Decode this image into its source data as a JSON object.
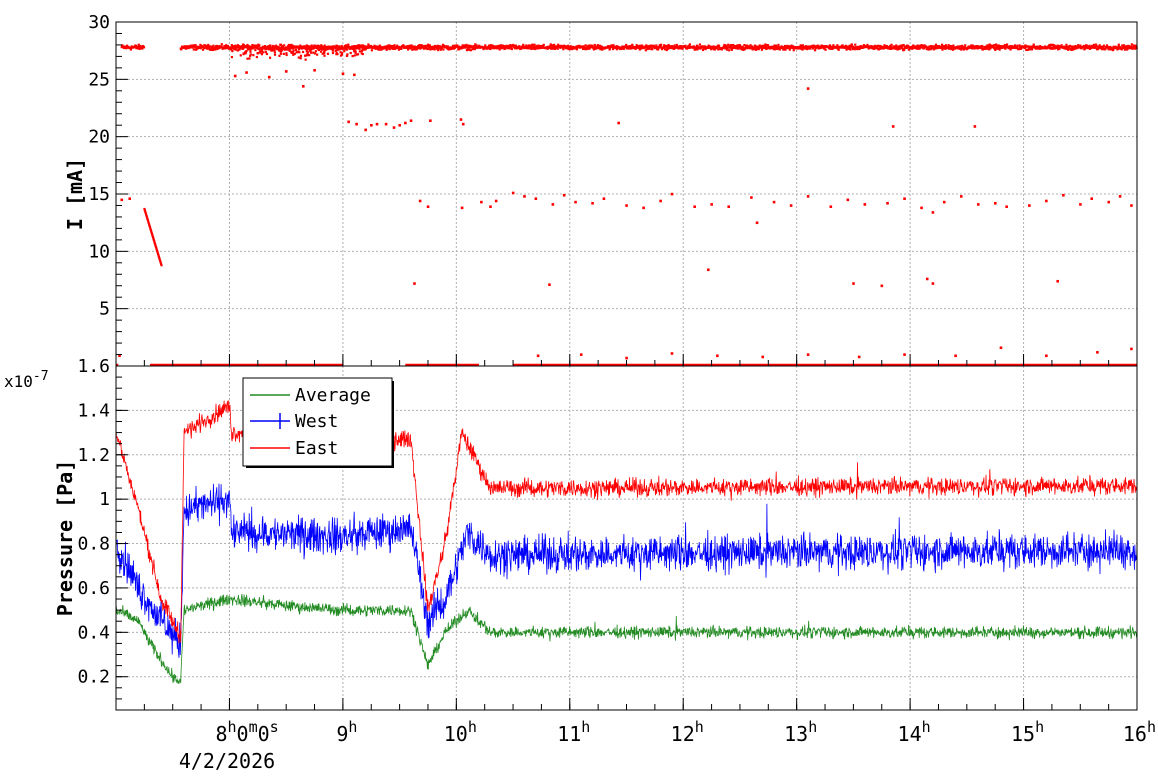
{
  "chart_data": [
    {
      "type": "scatter",
      "title": "",
      "xlabel": "",
      "ylabel": "I [mA]",
      "xlim": [
        7.0,
        16.0
      ],
      "ylim": [
        0,
        30
      ],
      "yticks": [
        "5",
        "10",
        "15",
        "20",
        "25",
        "30"
      ],
      "grid": true,
      "series": [
        {
          "color": "#ff0000",
          "bands": [
            {
              "x0": 7.05,
              "x1": 7.25,
              "y": 27.8,
              "noise": 0.3
            },
            {
              "x0": 7.57,
              "x1": 16.0,
              "y": 27.8,
              "noise": 0.3
            }
          ],
          "decay": {
            "x0": 7.25,
            "x1": 7.4,
            "y0": 13.7,
            "y1": 8.8
          },
          "outliers": [
            {
              "x": 7.05,
              "y": 14.5
            },
            {
              "x": 7.12,
              "y": 14.6
            },
            {
              "x": 8.05,
              "y": 25.3
            },
            {
              "x": 8.15,
              "y": 25.6
            },
            {
              "x": 8.35,
              "y": 25.2
            },
            {
              "x": 8.5,
              "y": 25.7
            },
            {
              "x": 8.65,
              "y": 24.4
            },
            {
              "x": 8.75,
              "y": 25.8
            },
            {
              "x": 9.0,
              "y": 25.5
            },
            {
              "x": 9.1,
              "y": 25.4
            },
            {
              "x": 9.05,
              "y": 21.3
            },
            {
              "x": 9.12,
              "y": 21.1
            },
            {
              "x": 9.2,
              "y": 20.6
            },
            {
              "x": 9.25,
              "y": 21.0
            },
            {
              "x": 9.3,
              "y": 21.1
            },
            {
              "x": 9.38,
              "y": 21.1
            },
            {
              "x": 9.45,
              "y": 20.8
            },
            {
              "x": 9.5,
              "y": 21.0
            },
            {
              "x": 9.55,
              "y": 21.2
            },
            {
              "x": 9.6,
              "y": 21.4
            },
            {
              "x": 9.77,
              "y": 21.4
            },
            {
              "x": 10.04,
              "y": 21.5
            },
            {
              "x": 10.06,
              "y": 21.1
            },
            {
              "x": 11.43,
              "y": 21.2
            },
            {
              "x": 13.85,
              "y": 20.9
            },
            {
              "x": 14.57,
              "y": 20.9
            },
            {
              "x": 13.1,
              "y": 24.2
            },
            {
              "x": 9.68,
              "y": 14.4
            },
            {
              "x": 9.75,
              "y": 13.9
            },
            {
              "x": 10.05,
              "y": 13.8
            },
            {
              "x": 10.22,
              "y": 14.3
            },
            {
              "x": 10.3,
              "y": 13.9
            },
            {
              "x": 10.35,
              "y": 14.4
            },
            {
              "x": 10.5,
              "y": 15.1
            },
            {
              "x": 10.6,
              "y": 14.8
            },
            {
              "x": 10.7,
              "y": 14.6
            },
            {
              "x": 10.85,
              "y": 14.1
            },
            {
              "x": 10.95,
              "y": 14.9
            },
            {
              "x": 11.05,
              "y": 14.3
            },
            {
              "x": 11.2,
              "y": 14.2
            },
            {
              "x": 11.3,
              "y": 14.6
            },
            {
              "x": 11.5,
              "y": 14.0
            },
            {
              "x": 11.65,
              "y": 13.8
            },
            {
              "x": 11.8,
              "y": 14.4
            },
            {
              "x": 11.9,
              "y": 15.0
            },
            {
              "x": 12.1,
              "y": 13.9
            },
            {
              "x": 12.25,
              "y": 14.1
            },
            {
              "x": 12.4,
              "y": 13.9
            },
            {
              "x": 12.6,
              "y": 14.7
            },
            {
              "x": 12.65,
              "y": 12.5
            },
            {
              "x": 12.8,
              "y": 14.3
            },
            {
              "x": 12.95,
              "y": 14.0
            },
            {
              "x": 13.1,
              "y": 14.8
            },
            {
              "x": 13.3,
              "y": 13.9
            },
            {
              "x": 13.45,
              "y": 14.5
            },
            {
              "x": 13.6,
              "y": 14.1
            },
            {
              "x": 13.8,
              "y": 14.2
            },
            {
              "x": 13.95,
              "y": 14.6
            },
            {
              "x": 14.1,
              "y": 13.8
            },
            {
              "x": 14.2,
              "y": 13.4
            },
            {
              "x": 14.3,
              "y": 14.3
            },
            {
              "x": 14.45,
              "y": 14.8
            },
            {
              "x": 14.6,
              "y": 14.1
            },
            {
              "x": 14.75,
              "y": 14.2
            },
            {
              "x": 14.85,
              "y": 13.9
            },
            {
              "x": 15.05,
              "y": 14.0
            },
            {
              "x": 15.2,
              "y": 14.4
            },
            {
              "x": 15.35,
              "y": 14.9
            },
            {
              "x": 15.5,
              "y": 14.1
            },
            {
              "x": 15.6,
              "y": 14.6
            },
            {
              "x": 15.75,
              "y": 14.3
            },
            {
              "x": 15.85,
              "y": 14.8
            },
            {
              "x": 15.95,
              "y": 14.0
            },
            {
              "x": 9.63,
              "y": 7.2
            },
            {
              "x": 10.82,
              "y": 7.1
            },
            {
              "x": 12.22,
              "y": 8.4
            },
            {
              "x": 13.5,
              "y": 7.2
            },
            {
              "x": 13.75,
              "y": 7.0
            },
            {
              "x": 14.15,
              "y": 7.6
            },
            {
              "x": 14.2,
              "y": 7.2
            },
            {
              "x": 15.3,
              "y": 7.4
            },
            {
              "x": 7.03,
              "y": 0.9
            },
            {
              "x": 10.72,
              "y": 0.9
            },
            {
              "x": 11.1,
              "y": 1.0
            },
            {
              "x": 11.5,
              "y": 0.7
            },
            {
              "x": 11.9,
              "y": 1.1
            },
            {
              "x": 12.3,
              "y": 0.9
            },
            {
              "x": 12.7,
              "y": 0.8
            },
            {
              "x": 13.1,
              "y": 1.0
            },
            {
              "x": 13.55,
              "y": 0.8
            },
            {
              "x": 13.95,
              "y": 1.0
            },
            {
              "x": 14.4,
              "y": 0.9
            },
            {
              "x": 14.8,
              "y": 1.6
            },
            {
              "x": 15.2,
              "y": 0.9
            },
            {
              "x": 15.65,
              "y": 1.2
            },
            {
              "x": 15.95,
              "y": 1.5
            }
          ],
          "zero_segments": [
            [
              7.0,
              7.02
            ],
            [
              7.3,
              9.0
            ],
            [
              9.55,
              10.2
            ],
            [
              10.5,
              16.0
            ]
          ]
        }
      ]
    },
    {
      "type": "line",
      "title": "",
      "xlabel": "",
      "ylabel": "Pressure [Pa]",
      "y_exponent": "x10",
      "y_exponent_power": "-7",
      "xlim": [
        7.0,
        16.0
      ],
      "ylim": [
        0.05,
        1.6
      ],
      "yticks": [
        "0.2",
        "0.4",
        "0.6",
        "0.8",
        "1",
        "1.2",
        "1.4",
        "1.6"
      ],
      "xticks": [
        {
          "x": 8,
          "label": "8",
          "sup": "h",
          "rest": "0",
          "sup2": "m",
          "rest2": "0",
          "sup3": "s"
        },
        {
          "x": 9,
          "label": "9",
          "sup": "h"
        },
        {
          "x": 10,
          "label": "10",
          "sup": "h"
        },
        {
          "x": 11,
          "label": "11",
          "sup": "h"
        },
        {
          "x": 12,
          "label": "12",
          "sup": "h"
        },
        {
          "x": 13,
          "label": "13",
          "sup": "h"
        },
        {
          "x": 14,
          "label": "14",
          "sup": "h"
        },
        {
          "x": 15,
          "label": "15",
          "sup": "h"
        },
        {
          "x": 16,
          "label": "16",
          "sup": "h"
        }
      ],
      "date": "4/2/2026",
      "grid": true,
      "legend_position": "top-left",
      "series": [
        {
          "name": "Average",
          "color": "#228b22",
          "profile": [
            [
              7.0,
              0.5
            ],
            [
              7.2,
              0.45
            ],
            [
              7.3,
              0.35
            ],
            [
              7.5,
              0.2
            ],
            [
              7.57,
              0.18
            ],
            [
              7.6,
              0.5
            ],
            [
              8.0,
              0.55
            ],
            [
              8.5,
              0.52
            ],
            [
              9.0,
              0.5
            ],
            [
              9.6,
              0.5
            ],
            [
              9.75,
              0.25
            ],
            [
              9.9,
              0.4
            ],
            [
              10.1,
              0.5
            ],
            [
              10.3,
              0.4
            ],
            [
              16.0,
              0.4
            ]
          ],
          "noise": 0.04
        },
        {
          "name": "West",
          "color": "#0000ff",
          "profile": [
            [
              7.0,
              0.8
            ],
            [
              7.2,
              0.6
            ],
            [
              7.4,
              0.45
            ],
            [
              7.57,
              0.35
            ],
            [
              7.6,
              0.95
            ],
            [
              8.0,
              1.0
            ],
            [
              8.02,
              0.85
            ],
            [
              9.0,
              0.83
            ],
            [
              9.6,
              0.87
            ],
            [
              9.75,
              0.45
            ],
            [
              9.9,
              0.55
            ],
            [
              10.1,
              0.85
            ],
            [
              10.3,
              0.75
            ],
            [
              16.0,
              0.77
            ]
          ],
          "noise": 0.12
        },
        {
          "name": "East",
          "color": "#ff0000",
          "profile": [
            [
              7.0,
              1.3
            ],
            [
              7.2,
              0.95
            ],
            [
              7.4,
              0.55
            ],
            [
              7.57,
              0.38
            ],
            [
              7.6,
              1.3
            ],
            [
              8.0,
              1.42
            ],
            [
              8.02,
              1.3
            ],
            [
              9.0,
              1.27
            ],
            [
              9.6,
              1.27
            ],
            [
              9.75,
              0.5
            ],
            [
              9.9,
              0.8
            ],
            [
              10.05,
              1.3
            ],
            [
              10.3,
              1.05
            ],
            [
              16.0,
              1.06
            ]
          ],
          "noise": 0.06
        }
      ]
    }
  ]
}
